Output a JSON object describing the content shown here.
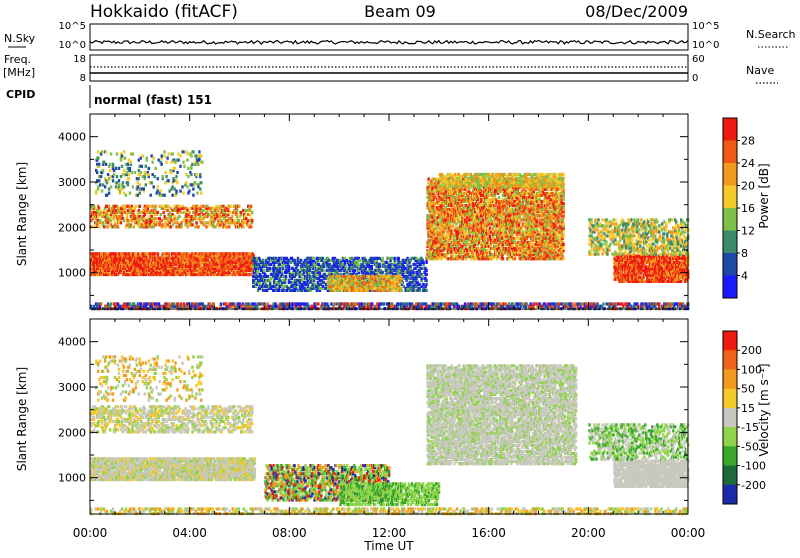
{
  "header": {
    "station": "Hokkaido (fitACF)",
    "beam": "Beam 09",
    "date": "08/Dec/2009"
  },
  "top_panels": {
    "nsky_label": "N.Sky",
    "nsearch_label": "N.Search",
    "nsky_ticks": [
      "10^5",
      "10^0"
    ],
    "nsearch_ticks": [
      "10^5",
      "10^0"
    ],
    "freq_label_1": "Freq.",
    "freq_label_2": "[MHz]",
    "freq_ticks": [
      "18",
      "8"
    ],
    "nave_label": "Nave",
    "nave_ticks": [
      "60",
      "0"
    ],
    "cpid_label": "CPID",
    "cpid_text": "normal (fast) 151"
  },
  "chart_data": [
    {
      "type": "heatmap",
      "name": "power",
      "ylabel": "Slant Range [km]",
      "ylim": [
        200,
        4500
      ],
      "yticks": [
        "1000",
        "2000",
        "3000",
        "4000"
      ],
      "xlim": [
        0,
        24
      ],
      "colorbar_label": "Power [dB]",
      "colorbar_ticks": [
        "4",
        "8",
        "12",
        "16",
        "20",
        "24",
        "28"
      ],
      "colors": [
        "#1a1aff",
        "#1c48a8",
        "#3d8a6a",
        "#7fc04a",
        "#f5c92a",
        "#f29a1c",
        "#f05a14",
        "#ef1a10"
      ]
    },
    {
      "type": "heatmap",
      "name": "velocity",
      "ylabel": "Slant Range [km]",
      "ylim": [
        200,
        4500
      ],
      "yticks": [
        "1000",
        "2000",
        "3000",
        "4000"
      ],
      "xlim": [
        0,
        24
      ],
      "colorbar_label": "Velocity [m s⁻¹]",
      "colorbar_ticks": [
        "200",
        "100",
        "50",
        "15",
        "-15",
        "-50",
        "-100",
        "-200"
      ],
      "colors": [
        "#1a2aa8",
        "#1c6a3a",
        "#39a82a",
        "#8ed44a",
        "#c8c8be",
        "#f5c92a",
        "#f29a1c",
        "#f0641a",
        "#ef1a10"
      ]
    }
  ],
  "xaxis": {
    "ticks": [
      "00:00",
      "04:00",
      "08:00",
      "12:00",
      "16:00",
      "20:00",
      "00:00"
    ],
    "label": "Time UT"
  }
}
